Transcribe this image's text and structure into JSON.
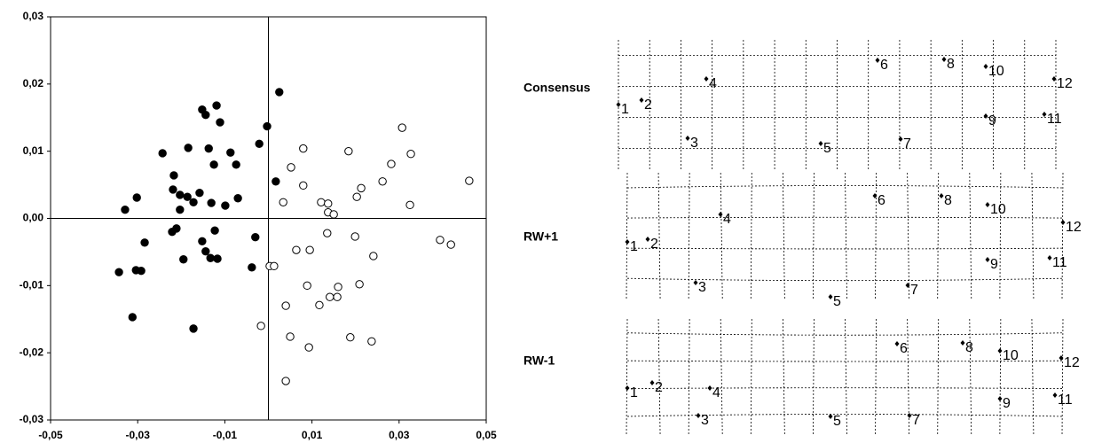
{
  "chart_data": {
    "type": "scatter",
    "xlim": [
      -0.05,
      0.05
    ],
    "xticks": [
      {
        "value": -0.05,
        "label": "-0,05"
      },
      {
        "value": -0.03,
        "label": "-0,03"
      },
      {
        "value": -0.01,
        "label": "-0,01"
      },
      {
        "value": 0.01,
        "label": "0,01"
      },
      {
        "value": 0.03,
        "label": "0,03"
      },
      {
        "value": 0.05,
        "label": "0,05"
      }
    ],
    "ylim": [
      -0.03,
      0.03
    ],
    "yticks": [
      {
        "value": -0.03,
        "label": "-0,03"
      },
      {
        "value": -0.02,
        "label": "-0,02"
      },
      {
        "value": -0.01,
        "label": "-0,01"
      },
      {
        "value": 0,
        "label": "0,00"
      },
      {
        "value": 0.01,
        "label": "0,01"
      },
      {
        "value": 0.02,
        "label": "0,02"
      },
      {
        "value": 0.03,
        "label": "0,03"
      }
    ],
    "series": [
      {
        "color": "#000000",
        "marker": "filled",
        "x": [
          0.0025,
          -0.0003,
          -0.0021,
          0.0017,
          -0.003,
          -0.0038,
          -0.0119,
          -0.0152,
          -0.0144,
          -0.0111,
          -0.0184,
          -0.0137,
          -0.0087,
          -0.0243,
          -0.0125,
          -0.0074,
          -0.0217,
          -0.0219,
          -0.0203,
          -0.0186,
          -0.0172,
          -0.0158,
          -0.0131,
          -0.0099,
          -0.007,
          -0.0302,
          -0.0329,
          -0.0203,
          -0.0211,
          -0.0221,
          -0.0284,
          -0.0152,
          -0.0123,
          -0.0144,
          -0.0133,
          -0.0117,
          -0.0195,
          -0.0304,
          -0.0292,
          -0.0343,
          -0.0312,
          -0.0172
        ],
        "values": [
          0.0188,
          0.0137,
          0.0111,
          0.0055,
          -0.0028,
          -0.0073,
          0.0168,
          0.0162,
          0.0154,
          0.0143,
          0.0105,
          0.0104,
          0.0098,
          0.0097,
          0.008,
          0.008,
          0.0064,
          0.0043,
          0.0035,
          0.0032,
          0.0024,
          0.0038,
          0.0023,
          0.0019,
          0.003,
          0.0031,
          0.0013,
          0.0013,
          -0.0015,
          -0.002,
          -0.0036,
          -0.0034,
          -0.0018,
          -0.0049,
          -0.0059,
          -0.006,
          -0.0061,
          -0.0077,
          -0.0078,
          -0.008,
          -0.0147,
          -0.0164
        ]
      },
      {
        "color": "#000000",
        "marker": "open",
        "x": [
          0.0461,
          0.0307,
          0.0327,
          0.008,
          0.0184,
          0.0052,
          0.008,
          0.0282,
          0.0262,
          0.0213,
          0.0203,
          0.0034,
          0.0121,
          0.0137,
          0.0137,
          0.015,
          0.0325,
          0.0135,
          0.0199,
          0.0241,
          0.0095,
          0.0064,
          0.0394,
          0.0419,
          0.0003,
          0.0013,
          0.0089,
          0.016,
          0.0209,
          0.0158,
          0.0141,
          0.0117,
          0.004,
          -0.0017,
          0.005,
          0.0188,
          0.0237,
          0.0093,
          0.004
        ],
        "values": [
          0.0056,
          0.0135,
          0.0096,
          0.0104,
          0.01,
          0.0076,
          0.0049,
          0.0081,
          0.0055,
          0.0045,
          0.0032,
          0.0024,
          0.0024,
          0.0022,
          0.0009,
          0.0006,
          0.002,
          -0.0022,
          -0.0027,
          -0.0056,
          -0.0047,
          -0.0047,
          -0.0032,
          -0.0039,
          -0.0071,
          -0.0071,
          -0.01,
          -0.0102,
          -0.0098,
          -0.0117,
          -0.0117,
          -0.0129,
          -0.013,
          -0.016,
          -0.0176,
          -0.0177,
          -0.0183,
          -0.0192,
          -0.0242
        ]
      }
    ]
  },
  "grids": [
    {
      "label": "Consensus",
      "landmarks": [
        "1",
        "2",
        "3",
        "4",
        "5",
        "6",
        "7",
        "8",
        "9",
        "10",
        "11",
        "12"
      ]
    },
    {
      "label": "RW+1",
      "landmarks": [
        "1",
        "2",
        "3",
        "4",
        "5",
        "6",
        "7",
        "8",
        "9",
        "10",
        "11",
        "12"
      ]
    },
    {
      "label": "RW-1",
      "landmarks": [
        "1",
        "2",
        "3",
        "4",
        "5",
        "6",
        "7",
        "8",
        "9",
        "10",
        "11",
        "12"
      ]
    }
  ]
}
